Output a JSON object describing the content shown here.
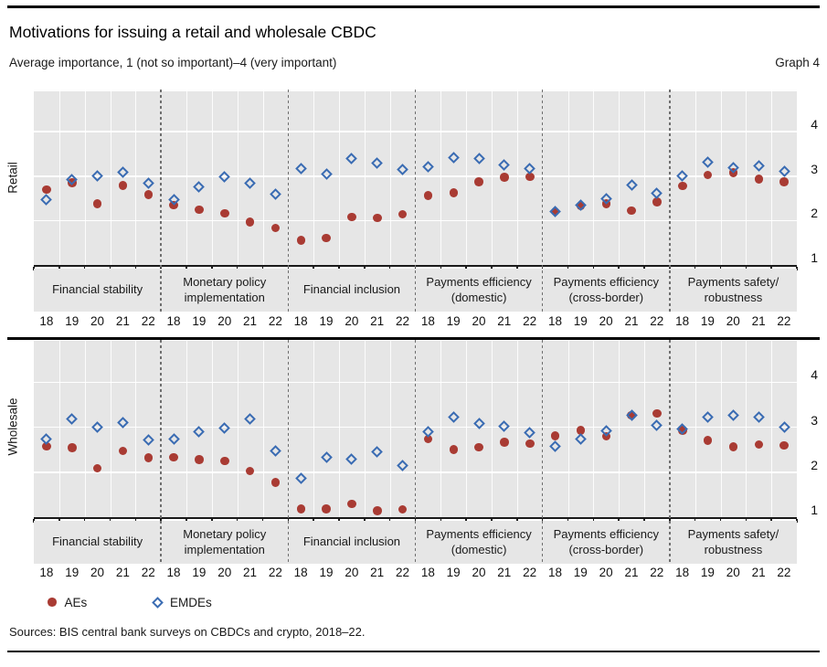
{
  "header": {
    "title": "Motivations for issuing a retail and wholesale CBDC",
    "subtitle": "Average importance, 1 (not so important)–4 (very important)",
    "graph_label": "Graph 4"
  },
  "legend": {
    "items": [
      {
        "label": "AEs",
        "marker": "circle",
        "color": "#a93b33"
      },
      {
        "label": "EMDEs",
        "marker": "diamond",
        "color": "#3a6cb3"
      }
    ]
  },
  "footer": {
    "sources": "Sources: BIS central bank surveys on CBDCs and crypto, 2018–22."
  },
  "colors": {
    "aes": "#a93b33",
    "emdes": "#3a6cb3",
    "plot_background": "#e6e6e6",
    "gridline": "#ffffff"
  },
  "chart_data": [
    {
      "type": "scatter",
      "panel": "Retail",
      "ylabel": "Retail",
      "ylim": [
        1,
        4.95
      ],
      "yticks": [
        4,
        3,
        2,
        1
      ],
      "years": [
        "18",
        "19",
        "20",
        "21",
        "22"
      ],
      "categories": [
        "Financial stability",
        "Monetary policy implementation",
        "Financial inclusion",
        "Payments efficiency (domestic)",
        "Payments efficiency (cross-border)",
        "Payments safety/ robustness"
      ],
      "series": [
        {
          "name": "AEs",
          "marker": "circle",
          "color": "#a93b33",
          "values": [
            [
              2.7,
              2.85,
              2.38,
              2.79,
              2.58
            ],
            [
              2.35,
              2.24,
              2.16,
              1.97,
              1.83
            ],
            [
              1.56,
              1.61,
              2.08,
              2.06,
              2.14
            ],
            [
              2.56,
              2.63,
              2.87,
              2.98,
              2.99
            ],
            [
              2.2,
              2.33,
              2.38,
              2.22,
              2.42
            ],
            [
              2.78,
              3.03,
              3.08,
              2.93,
              2.87
            ]
          ]
        },
        {
          "name": "EMDEs",
          "marker": "diamond",
          "color": "#3a6cb3",
          "values": [
            [
              2.47,
              2.92,
              3.0,
              3.09,
              2.85
            ],
            [
              2.48,
              2.75,
              2.98,
              2.85,
              2.6
            ],
            [
              3.18,
              3.04,
              3.39,
              3.3,
              3.16
            ],
            [
              3.22,
              3.42,
              3.4,
              3.26,
              3.18
            ],
            [
              2.21,
              2.34,
              2.5,
              2.8,
              2.62
            ],
            [
              3.01,
              3.31,
              3.2,
              3.23,
              3.1
            ]
          ]
        }
      ]
    },
    {
      "type": "scatter",
      "panel": "Wholesale",
      "ylabel": "Wholesale",
      "ylim": [
        1,
        4.95
      ],
      "yticks": [
        4,
        3,
        2,
        1
      ],
      "years": [
        "18",
        "19",
        "20",
        "21",
        "22"
      ],
      "categories": [
        "Financial stability",
        "Monetary policy implementation",
        "Financial inclusion",
        "Payments efficiency (domestic)",
        "Payments efficiency (cross-border)",
        "Payments safety/ robustness"
      ],
      "series": [
        {
          "name": "AEs",
          "marker": "circle",
          "color": "#a93b33",
          "values": [
            [
              2.57,
              2.54,
              2.09,
              2.47,
              2.32
            ],
            [
              2.33,
              2.28,
              2.25,
              2.03,
              1.77
            ],
            [
              1.18,
              1.18,
              1.29,
              1.14,
              1.17
            ],
            [
              2.74,
              2.5,
              2.55,
              2.67,
              2.63
            ],
            [
              2.81,
              2.93,
              2.8,
              3.26,
              3.3
            ],
            [
              2.93,
              2.71,
              2.56,
              2.61,
              2.59
            ]
          ]
        },
        {
          "name": "EMDEs",
          "marker": "diamond",
          "color": "#3a6cb3",
          "values": [
            [
              2.74,
              3.19,
              3.01,
              3.1,
              2.72
            ],
            [
              2.73,
              2.9,
              2.99,
              3.19,
              2.48
            ],
            [
              1.87,
              2.33,
              2.28,
              2.45,
              2.15
            ],
            [
              2.9,
              3.22,
              3.08,
              3.03,
              2.88
            ],
            [
              2.57,
              2.73,
              2.91,
              3.26,
              3.05
            ],
            [
              2.96,
              3.22,
              3.27,
              3.22,
              3.01
            ]
          ]
        }
      ]
    }
  ]
}
